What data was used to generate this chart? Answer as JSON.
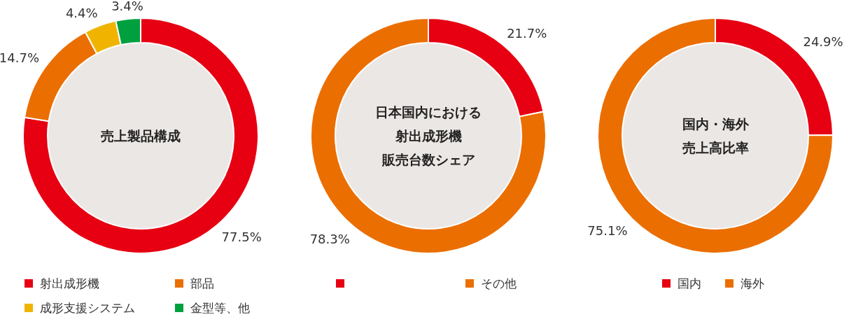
{
  "chart_data": [
    {
      "type": "donut",
      "title": "売上製品構成",
      "categories": [
        "射出成形機",
        "部品",
        "成形支援システム",
        "金型等、他"
      ],
      "values": [
        77.5,
        14.7,
        4.4,
        3.4
      ],
      "value_labels": [
        "77.5%",
        "14.7%",
        "4.4%",
        "3.4%"
      ],
      "colors": [
        "#e60012",
        "#eb6e00",
        "#f0b400",
        "#00a040"
      ],
      "legend": "bottom"
    },
    {
      "type": "donut",
      "title": "日本国内における射出成形機販売台数シェア",
      "categories": [
        null,
        "その他"
      ],
      "values": [
        21.7,
        78.3
      ],
      "value_labels": [
        "21.7%",
        "78.3%"
      ],
      "colors": [
        "#e60012",
        "#eb6e00"
      ],
      "legend": "bottom"
    },
    {
      "type": "donut",
      "title": "国内・海外売上高比率",
      "categories": [
        "国内",
        "海外"
      ],
      "values": [
        24.9,
        75.1
      ],
      "value_labels": [
        "24.9%",
        "75.1%"
      ],
      "colors": [
        "#e60012",
        "#eb6e00"
      ],
      "legend": "bottom"
    }
  ]
}
